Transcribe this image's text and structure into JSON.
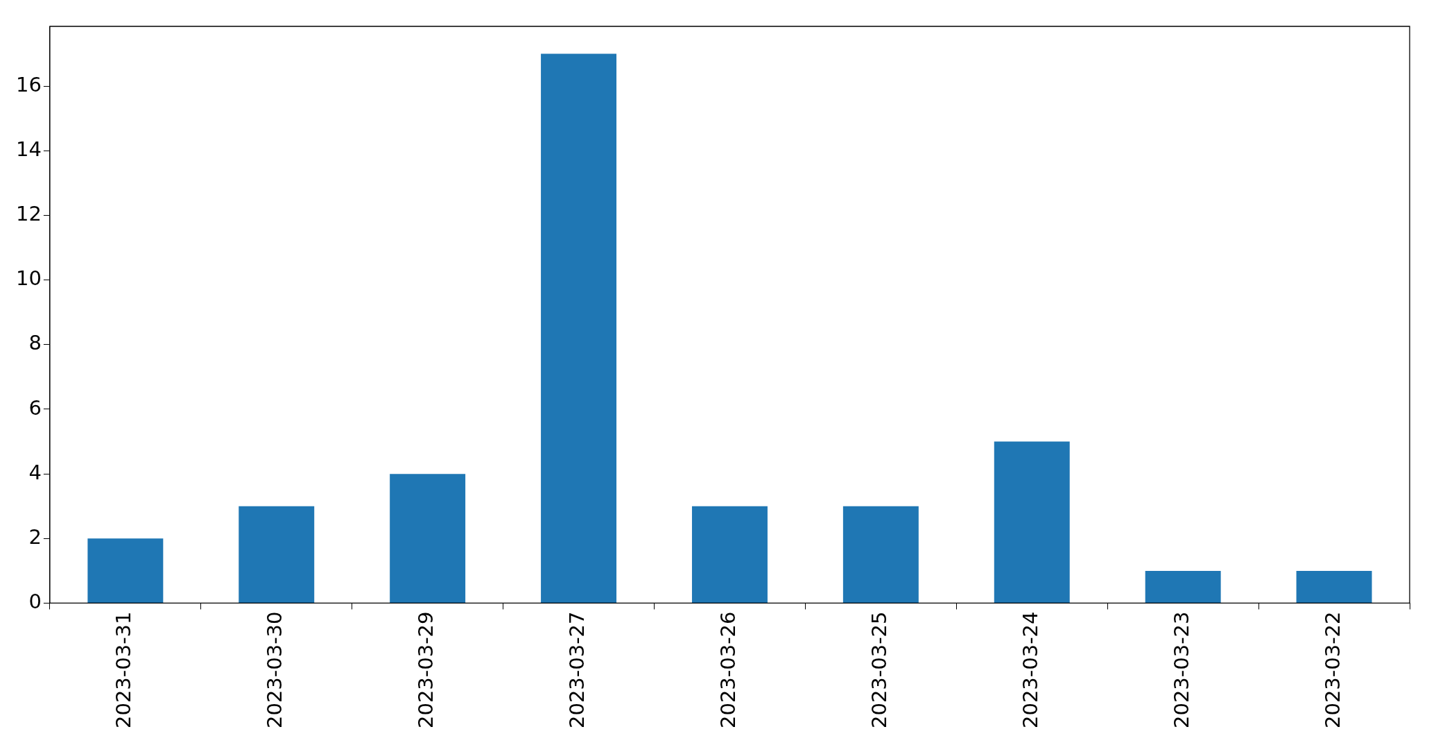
{
  "chart_data": {
    "type": "bar",
    "categories": [
      "2023-03-31",
      "2023-03-30",
      "2023-03-29",
      "2023-03-27",
      "2023-03-26",
      "2023-03-25",
      "2023-03-24",
      "2023-03-23",
      "2023-03-22"
    ],
    "values": [
      2,
      3,
      4,
      17,
      3,
      3,
      5,
      1,
      1
    ],
    "color": "#1f77b4",
    "ylim": [
      0,
      17.85
    ],
    "yticks": [
      0,
      2,
      4,
      6,
      8,
      10,
      12,
      14,
      16
    ]
  }
}
